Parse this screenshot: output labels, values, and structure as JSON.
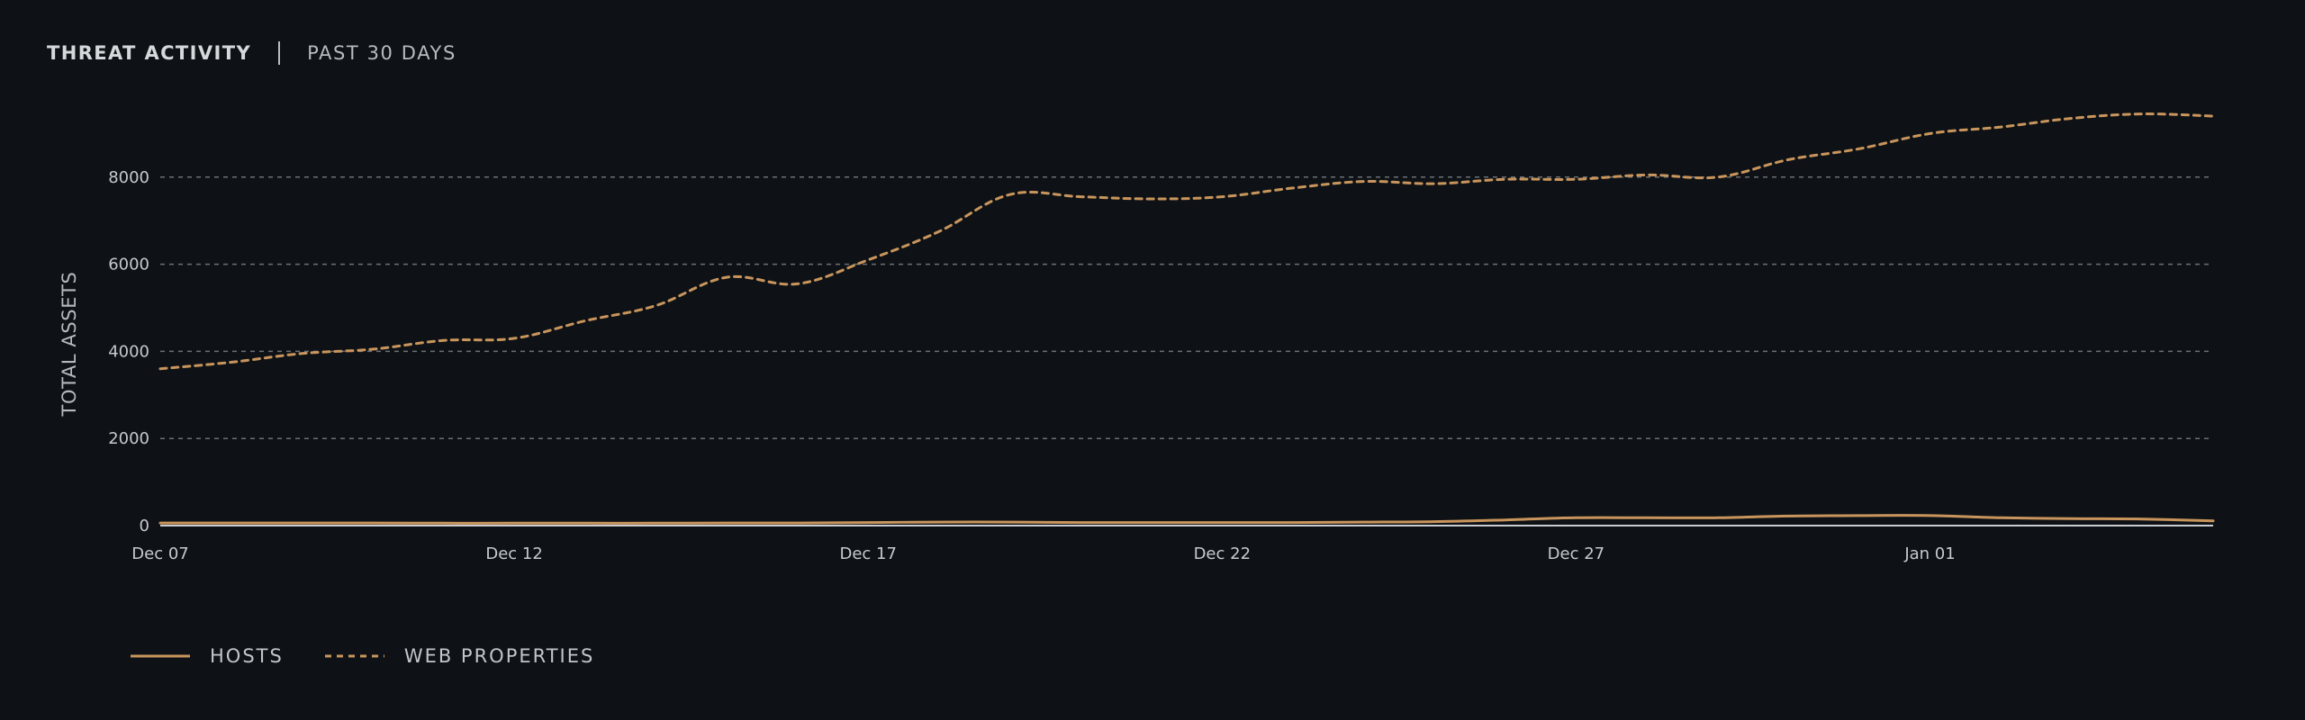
{
  "header": {
    "title": "THREAT ACTIVITY",
    "range": "PAST 30 DAYS"
  },
  "colors": {
    "background": "#0e1216",
    "series_line": "#c9955c",
    "grid": "#6b7076",
    "axis_baseline": "#c9ccd0"
  },
  "chart_data": {
    "type": "line",
    "ylabel": "TOTAL ASSETS",
    "xlabel": "",
    "ylim": [
      0,
      10000
    ],
    "y_ticks": [
      0,
      2000,
      4000,
      6000,
      8000
    ],
    "x_ticks": [
      "Dec 07",
      "Dec 12",
      "Dec 17",
      "Dec 22",
      "Dec 27",
      "Jan 01"
    ],
    "grid": "horizontal dashed",
    "legend": "bottom-left",
    "x": [
      "Dec 07",
      "Dec 08",
      "Dec 09",
      "Dec 10",
      "Dec 11",
      "Dec 12",
      "Dec 13",
      "Dec 14",
      "Dec 15",
      "Dec 16",
      "Dec 17",
      "Dec 18",
      "Dec 19",
      "Dec 20",
      "Dec 21",
      "Dec 22",
      "Dec 23",
      "Dec 24",
      "Dec 25",
      "Dec 26",
      "Dec 27",
      "Dec 28",
      "Dec 29",
      "Dec 30",
      "Dec 31",
      "Jan 01",
      "Jan 02",
      "Jan 03",
      "Jan 04",
      "Jan 05"
    ],
    "series": [
      {
        "name": "HOSTS",
        "style": "solid",
        "values": [
          60,
          60,
          60,
          60,
          55,
          55,
          55,
          55,
          60,
          60,
          70,
          80,
          80,
          70,
          70,
          70,
          70,
          80,
          90,
          130,
          180,
          180,
          180,
          220,
          230,
          230,
          180,
          160,
          150,
          110
        ]
      },
      {
        "name": "WEB PROPERTIES",
        "style": "dashed",
        "values": [
          3600,
          3750,
          3950,
          4050,
          4250,
          4300,
          4700,
          5050,
          5700,
          5550,
          6100,
          6750,
          7600,
          7550,
          7500,
          7550,
          7750,
          7900,
          7850,
          7950,
          7950,
          8050,
          8000,
          8400,
          8650,
          9000,
          9150,
          9350,
          9450,
          9400
        ]
      }
    ]
  }
}
